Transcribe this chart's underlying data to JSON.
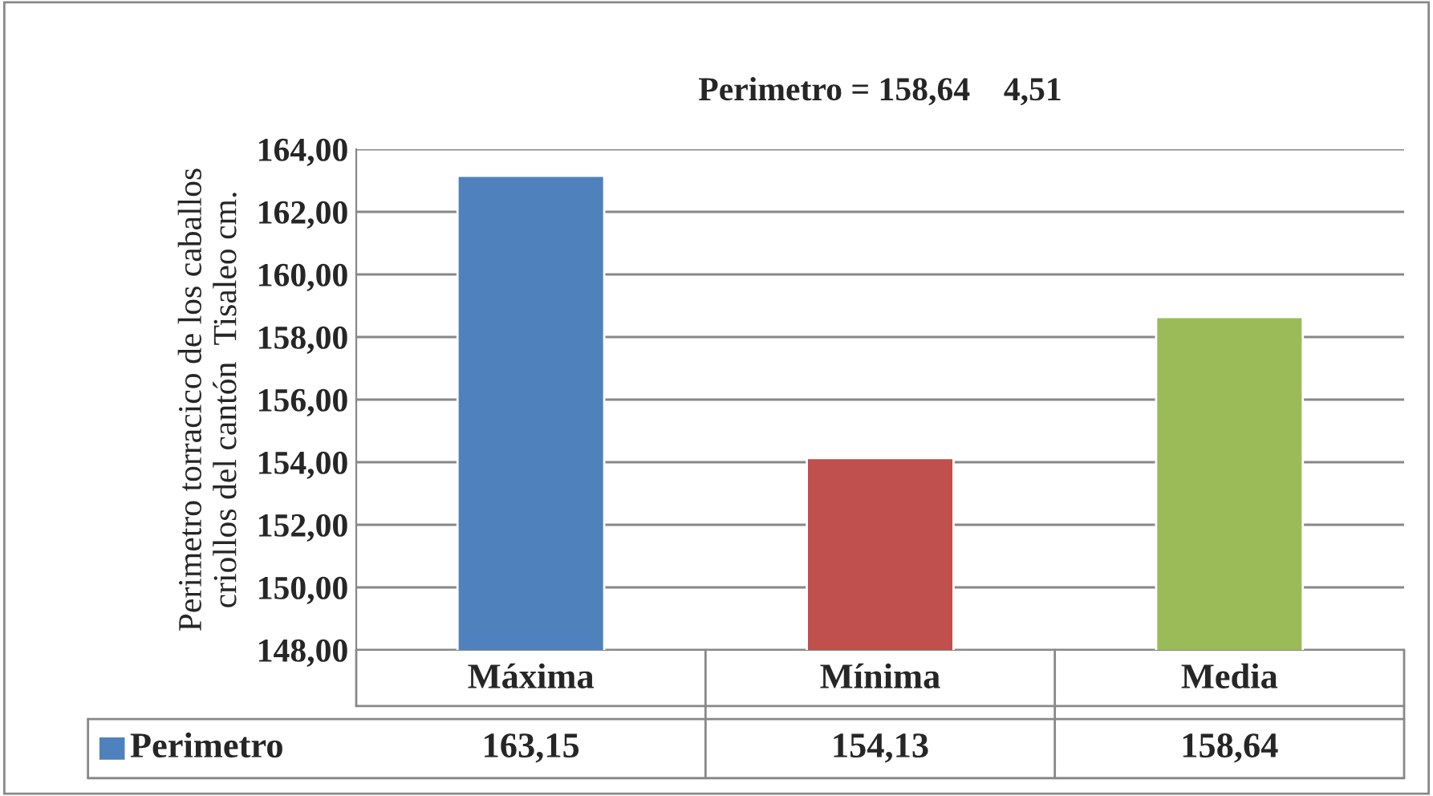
{
  "chart_data": {
    "type": "bar",
    "title": "Perimetro = 158,64    4,51",
    "ylabel": "Perimetro torracico de los caballos\ncriollos del cantón  Tisaleo cm.",
    "categories": [
      "Máxima",
      "Mínima",
      "Media"
    ],
    "series": [
      {
        "name": "Perimetro",
        "color": "#4f81bd",
        "colors": [
          "#4f81bd",
          "#c0504d",
          "#9bbb59"
        ],
        "values": [
          163.15,
          154.13,
          158.64
        ],
        "value_labels": [
          "163,15",
          "154,13",
          "158,64"
        ]
      }
    ],
    "ylim": [
      148,
      164
    ],
    "yticks": [
      {
        "value": 148,
        "label": "148,00"
      },
      {
        "value": 150,
        "label": "150,00"
      },
      {
        "value": 152,
        "label": "152,00"
      },
      {
        "value": 154,
        "label": "154,00"
      },
      {
        "value": 156,
        "label": "156,00"
      },
      {
        "value": 158,
        "label": "158,00"
      },
      {
        "value": 160,
        "label": "160,00"
      },
      {
        "value": 162,
        "label": "162,00"
      },
      {
        "value": 164,
        "label": "164,00"
      }
    ],
    "grid": "y",
    "legend": "bottom"
  }
}
